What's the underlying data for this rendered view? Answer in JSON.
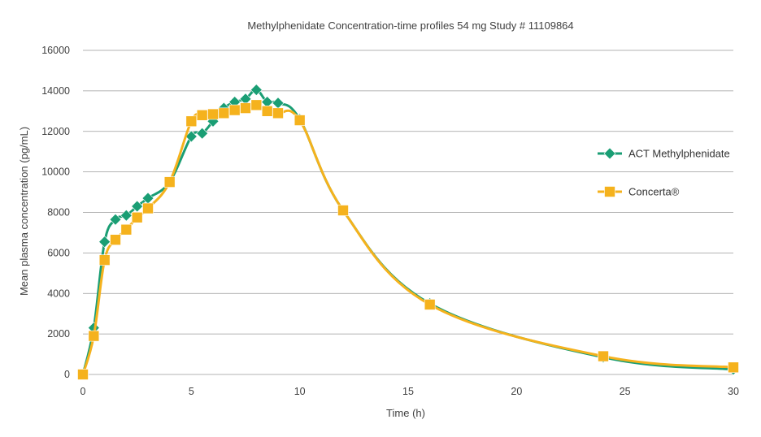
{
  "chart_data": {
    "type": "line",
    "title": "Methylphenidate Concentration-time profiles 54 mg Study # 11109864",
    "xlabel": "Time (h)",
    "ylabel": "Mean plasma concentration  (pg/mL)",
    "xlim": [
      0,
      30
    ],
    "ylim": [
      0,
      16000
    ],
    "xticks": [
      0,
      5,
      10,
      15,
      20,
      25,
      30
    ],
    "yticks": [
      0,
      2000,
      4000,
      6000,
      8000,
      10000,
      12000,
      14000,
      16000
    ],
    "grid": "horizontal",
    "legend_position": "right",
    "series": [
      {
        "name": "ACT Methylphenidate",
        "color": "#1a9e74",
        "marker": "diamond",
        "x": [
          0,
          0.5,
          1,
          1.5,
          2,
          2.5,
          3,
          4,
          5,
          5.5,
          6,
          6.5,
          7,
          7.5,
          8,
          8.5,
          9,
          10,
          12,
          16,
          24,
          30
        ],
        "y": [
          0,
          2300,
          6550,
          7650,
          7850,
          8300,
          8700,
          9500,
          11750,
          11900,
          12500,
          13150,
          13450,
          13600,
          14050,
          13450,
          13400,
          12600,
          8100,
          3500,
          850,
          250
        ]
      },
      {
        "name": "Concerta®",
        "color": "#f5b21d",
        "marker": "square",
        "x": [
          0,
          0.5,
          1,
          1.5,
          2,
          2.5,
          3,
          4,
          5,
          5.5,
          6,
          6.5,
          7,
          7.5,
          8,
          8.5,
          9,
          10,
          12,
          16,
          24,
          30
        ],
        "y": [
          0,
          1900,
          5650,
          6650,
          7150,
          7750,
          8200,
          9500,
          12500,
          12800,
          12850,
          12900,
          13050,
          13150,
          13300,
          13000,
          12900,
          12550,
          8100,
          3450,
          900,
          350
        ]
      }
    ]
  }
}
